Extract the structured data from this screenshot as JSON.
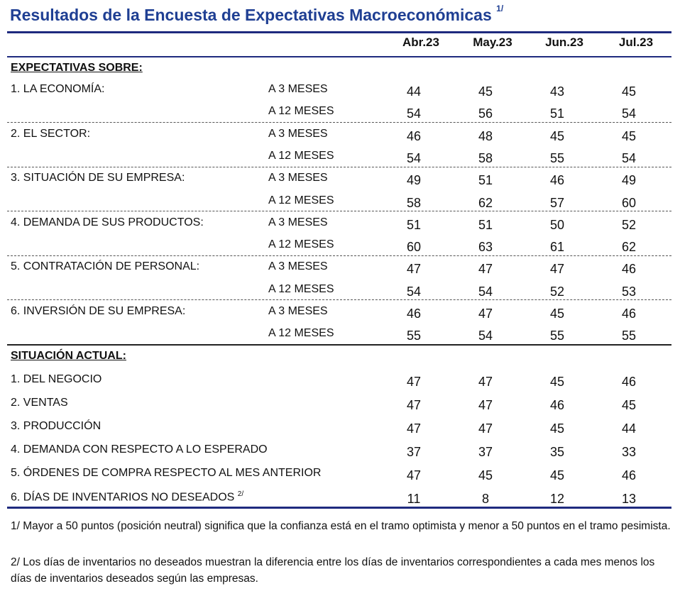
{
  "title": "Resultados de la Encuesta de Expectativas Macroeconómicas",
  "title_note": "1/",
  "columns": [
    "Abr.23",
    "May.23",
    "Jun.23",
    "Jul.23"
  ],
  "colors": {
    "title": "#1f3f93",
    "rule": "#1e2a7e"
  },
  "expectations": {
    "heading": "EXPECTATIVAS SOBRE:",
    "groups": [
      {
        "label": "1. LA ECONOMÍA:",
        "rows": [
          {
            "horizon": "A 3 MESES",
            "values": [
              44,
              45,
              43,
              45
            ]
          },
          {
            "horizon": "A 12 MESES",
            "values": [
              54,
              56,
              51,
              54
            ]
          }
        ]
      },
      {
        "label": "2. EL SECTOR:",
        "rows": [
          {
            "horizon": "A 3 MESES",
            "values": [
              46,
              48,
              45,
              45
            ]
          },
          {
            "horizon": "A 12 MESES",
            "values": [
              54,
              58,
              55,
              54
            ]
          }
        ]
      },
      {
        "label": "3. SITUACIÓN DE SU EMPRESA:",
        "rows": [
          {
            "horizon": "A 3 MESES",
            "values": [
              49,
              51,
              46,
              49
            ]
          },
          {
            "horizon": "A 12 MESES",
            "values": [
              58,
              62,
              57,
              60
            ]
          }
        ]
      },
      {
        "label": "4. DEMANDA DE SUS PRODUCTOS:",
        "rows": [
          {
            "horizon": "A 3 MESES",
            "values": [
              51,
              51,
              50,
              52
            ]
          },
          {
            "horizon": "A 12 MESES",
            "values": [
              60,
              63,
              61,
              62
            ]
          }
        ]
      },
      {
        "label": "5. CONTRATACIÓN DE PERSONAL:",
        "rows": [
          {
            "horizon": "A 3 MESES",
            "values": [
              47,
              47,
              47,
              46
            ]
          },
          {
            "horizon": "A 12 MESES",
            "values": [
              54,
              54,
              52,
              53
            ]
          }
        ]
      },
      {
        "label": "6. INVERSIÓN DE SU EMPRESA:",
        "rows": [
          {
            "horizon": "A 3 MESES",
            "values": [
              46,
              47,
              45,
              46
            ]
          },
          {
            "horizon": "A 12 MESES",
            "values": [
              55,
              54,
              55,
              55
            ]
          }
        ]
      }
    ]
  },
  "current": {
    "heading": "SITUACIÓN ACTUAL:",
    "rows": [
      {
        "label": "1. DEL NEGOCIO",
        "values": [
          47,
          47,
          45,
          46
        ]
      },
      {
        "label": "2. VENTAS",
        "values": [
          47,
          47,
          46,
          45
        ]
      },
      {
        "label": "3. PRODUCCIÓN",
        "values": [
          47,
          47,
          45,
          44
        ]
      },
      {
        "label": "4. DEMANDA CON RESPECTO A LO ESPERADO",
        "values": [
          37,
          37,
          35,
          33
        ]
      },
      {
        "label": "5. ÓRDENES DE COMPRA RESPECTO AL MES ANTERIOR",
        "values": [
          47,
          45,
          45,
          46
        ]
      },
      {
        "label": "6. DÍAS DE INVENTARIOS NO DESEADOS",
        "note": "2/",
        "values": [
          11,
          8,
          12,
          13
        ]
      }
    ]
  },
  "footnotes": [
    "1/ Mayor a 50 puntos (posición neutral) significa que la confianza está en el tramo optimista y menor a 50 puntos en el tramo pesimista.",
    "2/ Los días de inventarios no deseados muestran la diferencia entre los días de inventarios correspondientes a cada mes menos los días de inventarios deseados según las empresas."
  ]
}
